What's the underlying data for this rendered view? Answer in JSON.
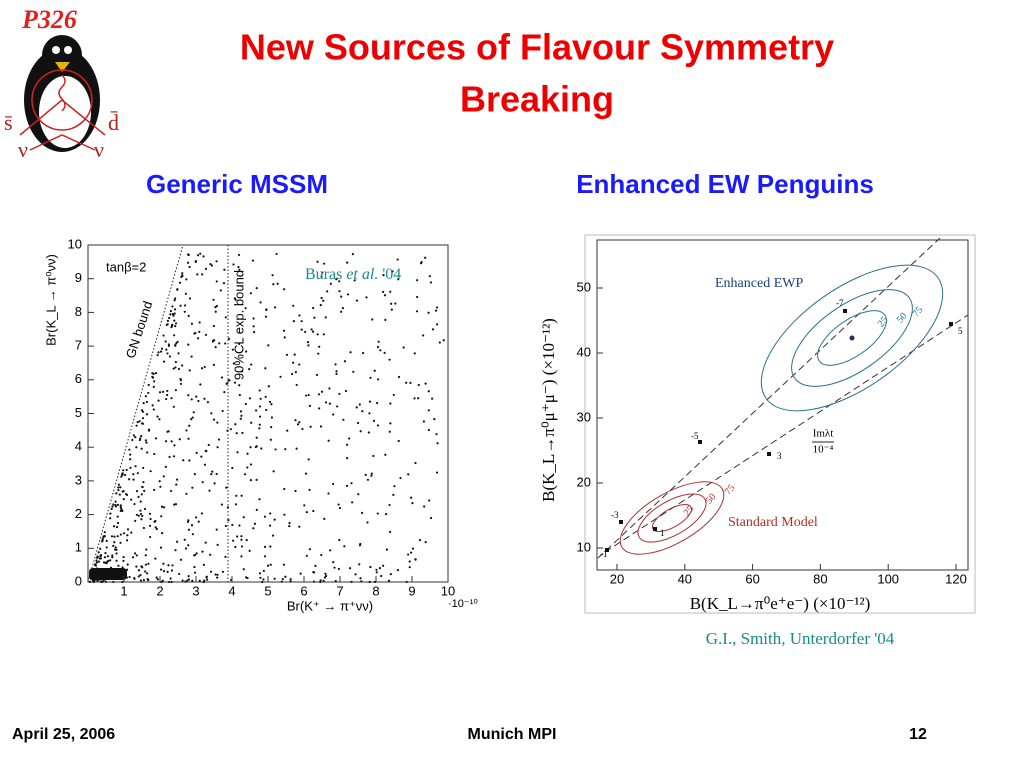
{
  "logo": {
    "title": "P326",
    "labels": [
      "s̄",
      "d̄",
      "ν",
      "ν"
    ]
  },
  "header": {
    "title_lines": [
      "New Sources of Flavour Symmetry",
      "Breaking"
    ]
  },
  "columns": [
    {
      "heading": "Generic MSSM"
    },
    {
      "heading": "Enhanced EW  Penguins"
    }
  ],
  "figures": [
    {
      "y_label": "Br(K_L → π⁰νν)",
      "x_label": "Br(K⁺ → π⁺νν)",
      "x_unit": "·10⁻¹⁰",
      "x_ticks": [
        1,
        2,
        3,
        4,
        5,
        6,
        7,
        8,
        9,
        10
      ],
      "y_ticks": [
        0,
        1,
        2,
        3,
        4,
        5,
        6,
        7,
        8,
        9,
        10
      ],
      "annotations": [
        "tanβ=2",
        "GN bound",
        "90%CL exp. bound"
      ],
      "credit": [
        "Buras ",
        "et al.",
        " '04"
      ]
    },
    {
      "y_label": "B(K_L→π⁰μ⁺μ⁻)  (×10⁻¹²)",
      "x_label": "B(K_L→π⁰e⁺e⁻)  (×10⁻¹²)",
      "x_ticks": [
        20,
        40,
        60,
        80,
        100,
        120
      ],
      "y_ticks": [
        10,
        20,
        30,
        40,
        50
      ],
      "annotations": [
        "Enhanced EWP",
        "Standard Model",
        "Imλt",
        "10⁻⁴"
      ],
      "contour_labels": [
        "25",
        "50",
        "75",
        "25",
        "50",
        "75"
      ],
      "point_labels": [
        "-7",
        "5",
        "-5",
        "3",
        "-3",
        "-1",
        "1"
      ],
      "credit": "G.I., Smith, Unterdorfer '04"
    }
  ],
  "footer": {
    "date": "April 25, 2006",
    "venue": "Munich MPI",
    "page": "12"
  }
}
